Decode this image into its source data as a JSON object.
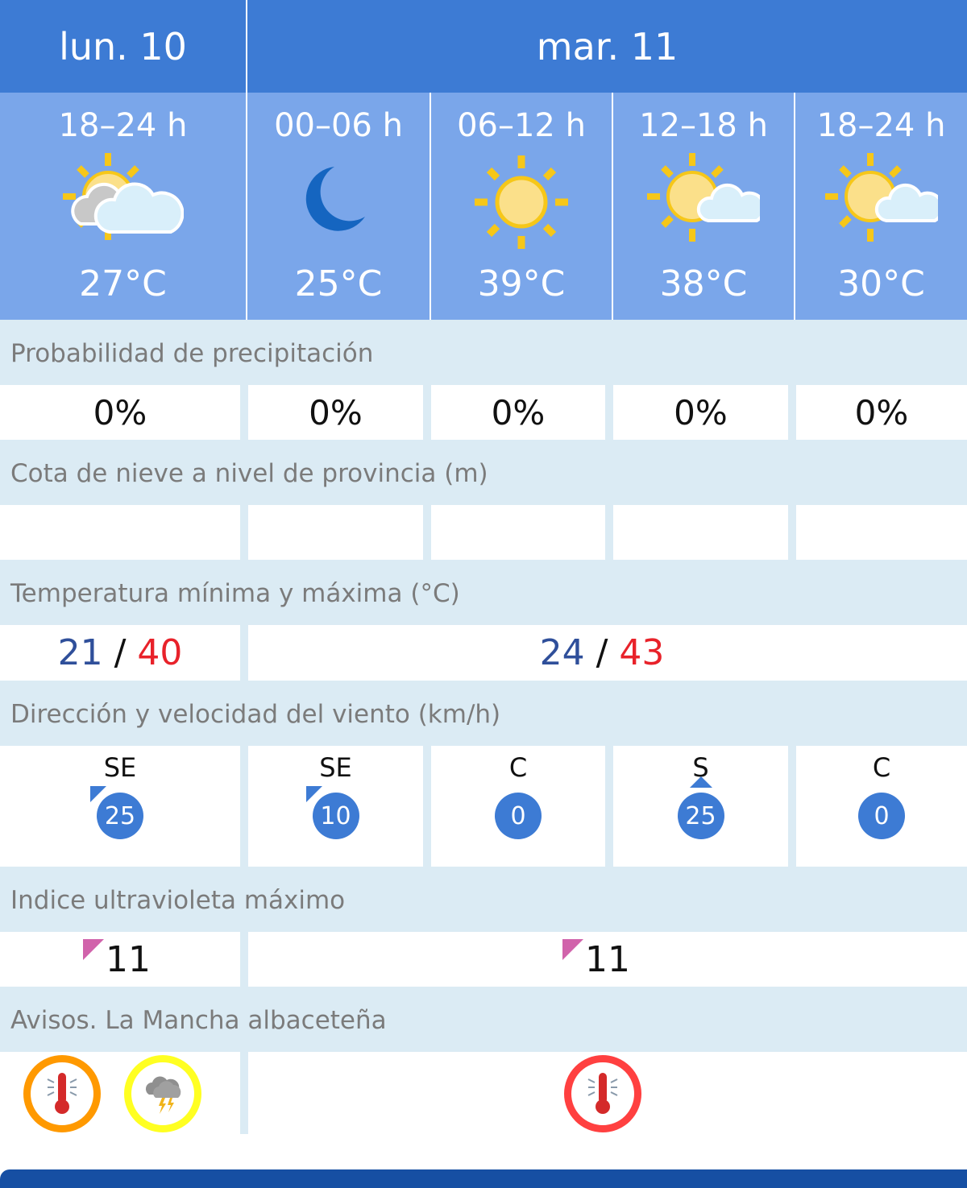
{
  "days": [
    {
      "label": "lun. 10"
    },
    {
      "label": "mar. 11"
    }
  ],
  "periods": [
    {
      "label": "18–24 h",
      "icon": "sun-cloud-partly-cloudy-icon",
      "temp": "27°C"
    },
    {
      "label": "00–06 h",
      "icon": "moon-icon",
      "temp": "25°C"
    },
    {
      "label": "06–12 h",
      "icon": "sun-icon",
      "temp": "39°C"
    },
    {
      "label": "12–18 h",
      "icon": "sun-small-cloud-icon",
      "temp": "38°C"
    },
    {
      "label": "18–24 h",
      "icon": "sun-small-cloud-icon",
      "temp": "30°C"
    }
  ],
  "precip": {
    "title": "Probabilidad de precipitación",
    "values": [
      "0%",
      "0%",
      "0%",
      "0%",
      "0%"
    ]
  },
  "snow": {
    "title": "Cota de nieve a nivel de provincia (m)",
    "values": [
      "",
      "",
      "",
      "",
      ""
    ]
  },
  "temps": {
    "title": "Temperatura mínima y máxima (°C)",
    "days": [
      {
        "min": "21",
        "sep": "/",
        "max": "40"
      },
      {
        "min": "24",
        "sep": "/",
        "max": "43"
      }
    ],
    "min_color": "#2f4f9a",
    "max_color": "#e8222a"
  },
  "wind": {
    "title": "Dirección y velocidad del viento (km/h)",
    "values": [
      {
        "dir": "SE",
        "speed": "25"
      },
      {
        "dir": "SE",
        "speed": "10"
      },
      {
        "dir": "C",
        "speed": "0"
      },
      {
        "dir": "S",
        "speed": "25"
      },
      {
        "dir": "C",
        "speed": "0"
      }
    ]
  },
  "uv": {
    "title": "Indice ultravioleta máximo",
    "values": [
      "11",
      "11"
    ],
    "flag_color": "#d163ab"
  },
  "warnings": {
    "title": "Avisos. La Mancha albaceteña",
    "items": [
      {
        "day": 0,
        "icon": "thermometer-icon",
        "level_color": "#ff9900"
      },
      {
        "day": 0,
        "icon": "storm-icon",
        "level_color": "#ffff22"
      },
      {
        "day": 1,
        "icon": "thermometer-icon",
        "level_color": "#ff4040"
      }
    ]
  }
}
